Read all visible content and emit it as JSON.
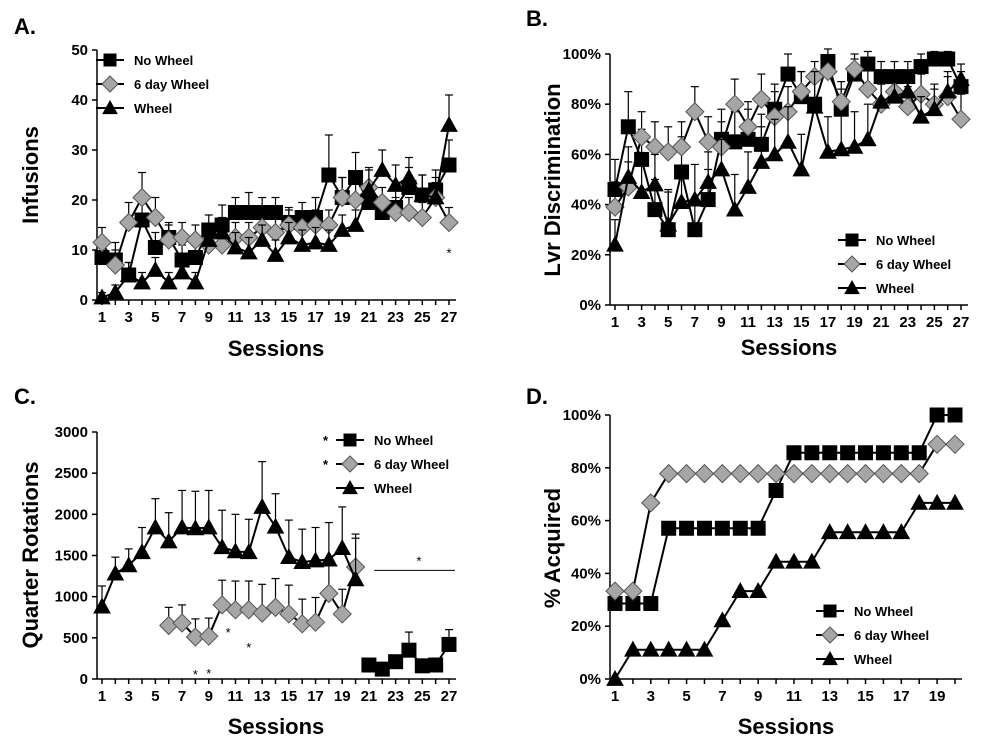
{
  "chart_data": [
    {
      "panel": "A.",
      "type": "line",
      "ylabel": "Infusions",
      "xlabel": "Sessions",
      "ylim": [
        0,
        50
      ],
      "yticks": [
        "0",
        "10",
        "20",
        "30",
        "40",
        "50"
      ],
      "xlim": [
        1,
        27
      ],
      "xticks": [
        "1",
        "3",
        "5",
        "7",
        "9",
        "11",
        "13",
        "15",
        "17",
        "19",
        "21",
        "23",
        "25",
        "27"
      ],
      "legend": [
        "No Wheel",
        "6 day Wheel",
        "Wheel"
      ],
      "legend_position": "top-left",
      "series": [
        {
          "name": "No Wheel",
          "marker": "square",
          "x": [
            1,
            2,
            3,
            4,
            5,
            6,
            7,
            8,
            9,
            10,
            11,
            12,
            13,
            14,
            15,
            16,
            17,
            18,
            19,
            20,
            21,
            22,
            23,
            24,
            25,
            26,
            27
          ],
          "values": [
            8.5,
            8,
            5,
            16,
            10.5,
            12.5,
            8,
            8.5,
            14,
            15,
            17.5,
            17.5,
            17.5,
            17.5,
            15.5,
            16.5,
            16.5,
            25,
            20.5,
            24.5,
            19.5,
            17.5,
            18.5,
            22.5,
            21,
            22,
            27
          ],
          "errors": [
            3,
            3.5,
            2.5,
            4,
            3,
            3,
            3,
            2.5,
            3,
            4,
            3,
            4,
            3,
            3,
            3,
            3,
            4,
            8,
            4,
            5,
            4,
            3,
            4,
            4,
            4,
            4,
            5
          ]
        },
        {
          "name": "6 day Wheel",
          "marker": "diamond",
          "x": [
            1,
            2,
            3,
            4,
            5,
            6,
            7,
            8,
            9,
            10,
            11,
            12,
            13,
            14,
            15,
            16,
            17,
            18,
            19,
            20,
            21,
            22,
            23,
            24,
            25,
            26,
            27
          ],
          "values": [
            11.5,
            7,
            15.5,
            20.5,
            16.5,
            12,
            12.5,
            12,
            11,
            11,
            12.5,
            12.5,
            14.5,
            13.5,
            15,
            14.5,
            15,
            15,
            20.5,
            20,
            22.5,
            19.5,
            17.5,
            17.5,
            16.5,
            20.5,
            15.5
          ],
          "errors": [
            3,
            3,
            4,
            5,
            4,
            3,
            3,
            3,
            3,
            3,
            3,
            3,
            3,
            3,
            3,
            3,
            3,
            3,
            4,
            4,
            4,
            3,
            3,
            3,
            3,
            3,
            3
          ]
        },
        {
          "name": "Wheel",
          "marker": "triangle",
          "x": [
            1,
            2,
            3,
            4,
            5,
            6,
            7,
            8,
            9,
            10,
            11,
            12,
            13,
            14,
            15,
            16,
            17,
            18,
            19,
            20,
            21,
            22,
            23,
            24,
            25,
            26,
            27
          ],
          "values": [
            0.5,
            1.5,
            5,
            3.5,
            6,
            3.5,
            5.5,
            3.5,
            12,
            13.5,
            10.5,
            9.5,
            12,
            9,
            12.5,
            11,
            11.5,
            11,
            14,
            15,
            22,
            26,
            23,
            24.5,
            21,
            20.5,
            35
          ],
          "errors": [
            1,
            1.5,
            2.5,
            2,
            2.5,
            2,
            2.5,
            2,
            3,
            3,
            3,
            3,
            3,
            3,
            3,
            3,
            3,
            3,
            3,
            3,
            4,
            4,
            4,
            4,
            4,
            4,
            6
          ]
        }
      ],
      "annotations": [
        {
          "text": "*",
          "x": 27
        }
      ]
    },
    {
      "panel": "B.",
      "type": "line",
      "ylabel": "Lvr Discrimination",
      "xlabel": "Sessions",
      "ylim": [
        0,
        100
      ],
      "yticks": [
        "0%",
        "20%",
        "40%",
        "60%",
        "80%",
        "100%"
      ],
      "xlim": [
        1,
        27
      ],
      "xticks": [
        "1",
        "3",
        "5",
        "7",
        "9",
        "11",
        "13",
        "15",
        "17",
        "19",
        "21",
        "23",
        "25",
        "27"
      ],
      "legend": [
        "No Wheel",
        "6 day Wheel",
        "Wheel"
      ],
      "legend_position": "bottom-right",
      "series": [
        {
          "name": "No Wheel",
          "marker": "square",
          "x": [
            1,
            2,
            3,
            4,
            5,
            6,
            7,
            8,
            9,
            10,
            11,
            12,
            13,
            14,
            15,
            16,
            17,
            18,
            19,
            20,
            21,
            22,
            23,
            24,
            25,
            26,
            27
          ],
          "values": [
            46,
            71,
            58,
            38,
            30,
            53,
            30,
            42,
            66,
            65,
            66,
            64,
            78,
            92,
            83,
            80,
            97,
            78,
            92,
            96,
            91,
            91,
            91,
            95,
            98,
            98,
            87
          ],
          "errors": [
            12,
            14,
            12,
            12,
            15,
            14,
            12,
            12,
            12,
            12,
            12,
            12,
            10,
            8,
            10,
            10,
            5,
            8,
            6,
            5,
            6,
            6,
            6,
            5,
            3,
            3,
            6
          ]
        },
        {
          "name": "6 day Wheel",
          "marker": "diamond",
          "x": [
            1,
            2,
            3,
            4,
            5,
            6,
            7,
            8,
            9,
            10,
            11,
            12,
            13,
            14,
            15,
            16,
            17,
            18,
            19,
            20,
            21,
            22,
            23,
            24,
            25,
            26,
            27
          ],
          "values": [
            39,
            47,
            67,
            63,
            61,
            63,
            77,
            65,
            63,
            80,
            71,
            82,
            75,
            77,
            85,
            91,
            93,
            81,
            94,
            86,
            80,
            85,
            79,
            84,
            80,
            83,
            74
          ],
          "errors": [
            10,
            10,
            10,
            10,
            10,
            10,
            10,
            10,
            10,
            10,
            10,
            10,
            10,
            10,
            8,
            6,
            6,
            8,
            6,
            8,
            8,
            8,
            8,
            8,
            8,
            8,
            10
          ]
        },
        {
          "name": "Wheel",
          "marker": "triangle",
          "x": [
            1,
            2,
            3,
            4,
            5,
            6,
            7,
            8,
            9,
            10,
            11,
            12,
            13,
            14,
            15,
            16,
            17,
            18,
            19,
            20,
            21,
            22,
            23,
            24,
            25,
            26,
            27
          ],
          "values": [
            24,
            51,
            45,
            48,
            32,
            41,
            42,
            49,
            54,
            38,
            47,
            57,
            60,
            65,
            54,
            79,
            61,
            62,
            63,
            66,
            81,
            83,
            85,
            75,
            78,
            85,
            90
          ],
          "errors": [
            10,
            12,
            12,
            12,
            14,
            14,
            14,
            12,
            12,
            14,
            14,
            14,
            14,
            14,
            14,
            14,
            14,
            14,
            14,
            14,
            8,
            8,
            8,
            8,
            8,
            8,
            6
          ]
        }
      ]
    },
    {
      "panel": "C.",
      "type": "line",
      "ylabel": "Quarter Rotations",
      "xlabel": "Sessions",
      "ylim": [
        0,
        3000
      ],
      "yticks": [
        "0",
        "500",
        "1000",
        "1500",
        "2000",
        "2500",
        "3000"
      ],
      "xlim": [
        1,
        27
      ],
      "xticks": [
        "1",
        "3",
        "5",
        "7",
        "9",
        "11",
        "13",
        "15",
        "17",
        "19",
        "21",
        "23",
        "25",
        "27"
      ],
      "legend": [
        "No Wheel",
        "6 day Wheel",
        "Wheel"
      ],
      "legend_marks": [
        "*",
        "*",
        ""
      ],
      "legend_position": "top-right",
      "series": [
        {
          "name": "No Wheel",
          "marker": "square",
          "x": [
            21,
            22,
            23,
            24,
            25,
            26,
            27
          ],
          "values": [
            170,
            120,
            210,
            350,
            160,
            170,
            420
          ],
          "errors": [
            80,
            40,
            60,
            220,
            50,
            40,
            180
          ]
        },
        {
          "name": "6 day Wheel",
          "marker": "diamond",
          "x": [
            6,
            7,
            8,
            9,
            10,
            11,
            12,
            13,
            14,
            15,
            16,
            17,
            18,
            19,
            20
          ],
          "values": [
            650,
            680,
            510,
            520,
            900,
            840,
            840,
            800,
            870,
            790,
            670,
            690,
            1040,
            790,
            1360
          ],
          "errors": [
            220,
            220,
            220,
            220,
            300,
            350,
            350,
            350,
            350,
            350,
            300,
            300,
            350,
            300,
            400
          ]
        },
        {
          "name": "Wheel",
          "marker": "triangle",
          "x": [
            1,
            2,
            3,
            4,
            5,
            6,
            7,
            8,
            9,
            10,
            11,
            12,
            13,
            14,
            15,
            16,
            17,
            18,
            19,
            20
          ],
          "values": [
            880,
            1280,
            1380,
            1540,
            1840,
            1670,
            1840,
            1830,
            1840,
            1600,
            1550,
            1540,
            2090,
            1850,
            1480,
            1420,
            1440,
            1450,
            1590,
            1210
          ],
          "errors": [
            250,
            200,
            200,
            300,
            350,
            350,
            450,
            450,
            450,
            450,
            450,
            400,
            550,
            400,
            450,
            400,
            400,
            450,
            500,
            500
          ]
        }
      ],
      "annotations": [
        {
          "text": "*",
          "x": 8
        },
        {
          "text": "*",
          "x": 9
        },
        {
          "text": "*",
          "x": 10
        },
        {
          "text": "*",
          "x": 12
        },
        {
          "text": "*",
          "x": 24,
          "bracket": [
            22,
            27
          ]
        }
      ]
    },
    {
      "panel": "D.",
      "type": "line",
      "ylabel": "% Acquired",
      "xlabel": "Sessions",
      "ylim": [
        0,
        100
      ],
      "yticks": [
        "0%",
        "20%",
        "40%",
        "60%",
        "80%",
        "100%"
      ],
      "xlim": [
        1,
        20
      ],
      "xticks": [
        "1",
        "3",
        "5",
        "7",
        "9",
        "11",
        "13",
        "15",
        "17",
        "19"
      ],
      "legend": [
        "No Wheel",
        "6 day Wheel",
        "Wheel"
      ],
      "legend_position": "bottom-right",
      "series": [
        {
          "name": "No Wheel",
          "marker": "square",
          "x": [
            1,
            2,
            3,
            4,
            5,
            6,
            7,
            8,
            9,
            10,
            11,
            12,
            13,
            14,
            15,
            16,
            17,
            18,
            19,
            20
          ],
          "values": [
            28.6,
            28.6,
            28.6,
            57.1,
            57.1,
            57.1,
            57.1,
            57.1,
            57.1,
            71.4,
            85.7,
            85.7,
            85.7,
            85.7,
            85.7,
            85.7,
            85.7,
            85.7,
            100,
            100
          ]
        },
        {
          "name": "6 day Wheel",
          "marker": "diamond",
          "x": [
            1,
            2,
            3,
            4,
            5,
            6,
            7,
            8,
            9,
            10,
            11,
            12,
            13,
            14,
            15,
            16,
            17,
            18,
            19,
            20
          ],
          "values": [
            33.3,
            33.3,
            66.7,
            77.8,
            77.8,
            77.8,
            77.8,
            77.8,
            77.8,
            77.8,
            77.8,
            77.8,
            77.8,
            77.8,
            77.8,
            77.8,
            77.8,
            77.8,
            88.9,
            88.9
          ]
        },
        {
          "name": "Wheel",
          "marker": "triangle",
          "x": [
            1,
            2,
            3,
            4,
            5,
            6,
            7,
            8,
            9,
            10,
            11,
            12,
            13,
            14,
            15,
            16,
            17,
            18,
            19,
            20
          ],
          "values": [
            0,
            11.1,
            11.1,
            11.1,
            11.1,
            11.1,
            22.2,
            33.3,
            33.3,
            44.4,
            44.4,
            44.4,
            55.6,
            55.6,
            55.6,
            55.6,
            55.6,
            66.7,
            66.7,
            66.7
          ]
        }
      ]
    }
  ],
  "colors": {
    "no_wheel": "#000000",
    "six_day_wheel": "#a6a6a6",
    "wheel": "#000000"
  },
  "icons": {
    "no_wheel": "square-marker",
    "six_day_wheel": "diamond-marker",
    "wheel": "triangle-marker"
  }
}
